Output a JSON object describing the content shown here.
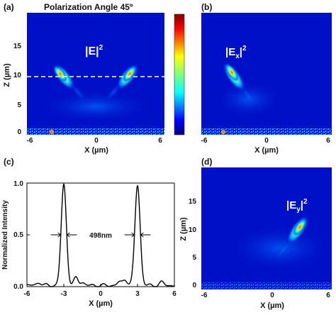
{
  "figure": {
    "main_title": "Polarization Angle 45º",
    "panels": {
      "a": {
        "label": "(a)",
        "field_label": "|E|",
        "field_sup": "2",
        "xlabel": "X (µm)",
        "ylabel": "Z (µm)",
        "xticks": [
          "-6",
          "0",
          "6"
        ],
        "yticks": [
          "0",
          "5",
          "10",
          "15"
        ]
      },
      "b": {
        "label": "(b)",
        "field_label": "|E",
        "field_sub": "x",
        "field_tail": "|",
        "field_sup": "2",
        "xlabel": "X (µm)",
        "xticks": [
          "-6",
          "0",
          "6"
        ]
      },
      "c": {
        "label": "(c)",
        "xlabel": "X (µm)",
        "ylabel": "Normalized Intensity",
        "xticks": [
          "-6",
          "-3",
          "0",
          "3",
          "6"
        ],
        "yticks": [
          "0.0",
          "0.5",
          "1.0"
        ],
        "annotation": "498nm"
      },
      "d": {
        "label": "(d)",
        "field_label": "|E",
        "field_sub": "y",
        "field_tail": "|",
        "field_sup": "2",
        "xlabel": "X (µm)",
        "ylabel": "Z (µm)",
        "xticks": [
          "-6",
          "0",
          "6"
        ],
        "yticks": [
          "0",
          "5",
          "10",
          "15"
        ]
      }
    },
    "colormap": [
      "#00007f",
      "#0000ff",
      "#007fff",
      "#00ffff",
      "#7fff7f",
      "#ffff00",
      "#ff7f00",
      "#ff0000",
      "#7f0000"
    ]
  },
  "chart_data": {
    "type": "line",
    "xlabel": "X (µm)",
    "ylabel": "Normalized Intensity",
    "xlim": [
      -6,
      6
    ],
    "ylim": [
      0,
      1
    ],
    "peaks": [
      {
        "center": -3.0,
        "height": 0.97,
        "fwhm_um": 0.498
      },
      {
        "center": 3.0,
        "height": 0.97,
        "fwhm_um": 0.498
      }
    ],
    "sidelobes": [
      {
        "center": -5.0,
        "height": 0.03
      },
      {
        "center": -2.0,
        "height": 0.07
      },
      {
        "center": -1.5,
        "height": 0.03
      },
      {
        "center": 1.5,
        "height": 0.03
      },
      {
        "center": 2.0,
        "height": 0.06
      },
      {
        "center": 5.0,
        "height": 0.03
      }
    ],
    "annotation": "498nm"
  }
}
